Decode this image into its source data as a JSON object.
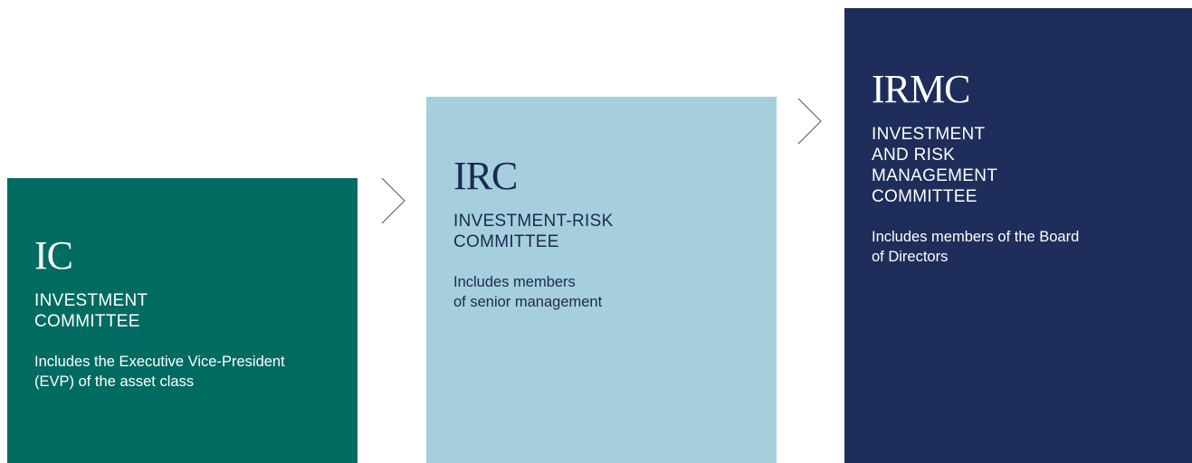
{
  "nodes": [
    {
      "abbr": "IC",
      "name": [
        "INVESTMENT",
        "COMMITTEE"
      ],
      "description": [
        "Includes the Executive Vice-President",
        "(EVP) of the asset class"
      ]
    },
    {
      "abbr": "IRC",
      "name": [
        "INVESTMENT-RISK",
        "COMMITTEE"
      ],
      "description": [
        "Includes members",
        "of senior management"
      ]
    },
    {
      "abbr": "IRMC",
      "name": [
        "INVESTMENT",
        "AND RISK",
        "MANAGEMENT",
        "COMMITTEE"
      ],
      "description": [
        "Includes members of the Board",
        "of Directors"
      ]
    }
  ]
}
